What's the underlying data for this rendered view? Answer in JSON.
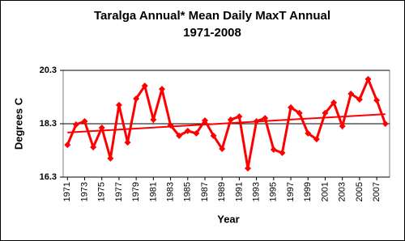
{
  "chart_data": {
    "type": "line",
    "title": [
      "Taralga Annual* Mean Daily MaxT Annual",
      "1971-2008"
    ],
    "x_label": "Year",
    "y_label": "Degrees C",
    "x": [
      1971,
      1972,
      1973,
      1974,
      1975,
      1976,
      1977,
      1978,
      1979,
      1980,
      1981,
      1982,
      1983,
      1984,
      1985,
      1986,
      1987,
      1988,
      1989,
      1990,
      1991,
      1992,
      1993,
      1994,
      1995,
      1996,
      1997,
      1998,
      1999,
      2000,
      2001,
      2002,
      2003,
      2004,
      2005,
      2006,
      2007,
      2008
    ],
    "values": [
      17.51,
      18.27,
      18.39,
      17.42,
      18.15,
      17.0,
      19.0,
      17.6,
      19.24,
      19.72,
      18.45,
      19.6,
      18.24,
      17.85,
      18.03,
      17.94,
      18.42,
      17.85,
      17.36,
      18.45,
      18.57,
      16.63,
      18.39,
      18.51,
      17.33,
      17.21,
      18.91,
      18.7,
      17.94,
      17.72,
      18.7,
      19.09,
      18.21,
      19.42,
      19.21,
      19.97,
      19.18,
      18.3
    ],
    "color": "#ff0000",
    "trendline": {
      "x": [
        1971,
        2008
      ],
      "values": [
        17.97,
        18.66
      ],
      "color": "#ff0000"
    },
    "xlim": [
      1970.5,
      2008.5
    ],
    "xticks": [
      1971,
      1973,
      1975,
      1977,
      1979,
      1981,
      1983,
      1985,
      1987,
      1989,
      1991,
      1993,
      1995,
      1997,
      1999,
      2001,
      2003,
      2005,
      2007
    ],
    "ylim": [
      16.3,
      20.3
    ],
    "yticks": [
      16.3,
      18.3,
      20.3
    ],
    "grid": true
  }
}
